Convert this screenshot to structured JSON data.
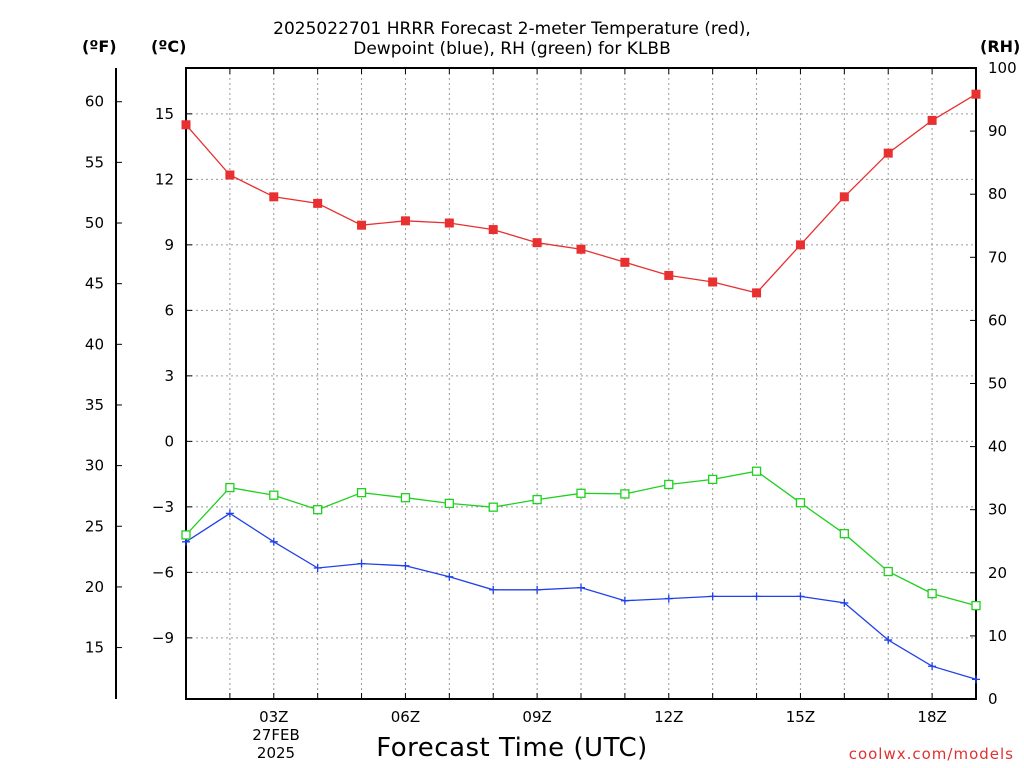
{
  "title_line1": "2025022701 HRRR Forecast 2-meter Temperature (red),",
  "title_line2": "Dewpoint (blue), RH (green) for KLBB",
  "unit_f": "(ºF)",
  "unit_c": "(ºC)",
  "unit_rh": "(RH)",
  "xlabel": "Forecast Time (UTC)",
  "credit": "coolwx.com/models",
  "date_line1": "27FEB",
  "date_line2": "2025",
  "colors": {
    "temperature": "#e83030",
    "dewpoint": "#2040e8",
    "rh": "#20d020",
    "grid": "#999999"
  },
  "chart_data": {
    "type": "line",
    "title": "2025022701 HRRR Forecast 2-meter Temperature (red), Dewpoint (blue), RH (green) for KLBB",
    "xlabel": "Forecast Time (UTC)",
    "x_unit": "hour UTC",
    "x": [
      1,
      2,
      3,
      4,
      5,
      6,
      7,
      8,
      9,
      10,
      11,
      12,
      13,
      14,
      15,
      16,
      17,
      18,
      19
    ],
    "x_ticks": [
      {
        "value": 3,
        "label": "03Z"
      },
      {
        "value": 6,
        "label": "06Z"
      },
      {
        "value": 9,
        "label": "09Z"
      },
      {
        "value": 12,
        "label": "12Z"
      },
      {
        "value": 15,
        "label": "15Z"
      },
      {
        "value": 18,
        "label": "18Z"
      }
    ],
    "xlim": [
      1,
      19
    ],
    "left_axis_c": {
      "label": "(ºC)",
      "ylim": [
        -11.8,
        17.1
      ],
      "ticks": [
        -9,
        -6,
        -3,
        0,
        3,
        6,
        9,
        12,
        15
      ]
    },
    "left_axis_f": {
      "label": "(ºF)",
      "ticks": [
        15,
        20,
        25,
        30,
        35,
        40,
        45,
        50,
        55,
        60
      ]
    },
    "right_axis_rh": {
      "label": "(RH)",
      "ylim": [
        0,
        100
      ],
      "ticks": [
        0,
        10,
        20,
        30,
        40,
        50,
        60,
        70,
        80,
        90,
        100
      ]
    },
    "grid": true,
    "series": [
      {
        "name": "Temperature",
        "axis": "c",
        "color": "#e83030",
        "marker": "filled-square",
        "values": [
          14.5,
          12.2,
          11.2,
          10.9,
          9.9,
          10.1,
          10.0,
          9.7,
          9.1,
          8.8,
          8.2,
          7.6,
          7.3,
          6.8,
          9.0,
          11.2,
          13.2,
          14.7,
          15.9
        ]
      },
      {
        "name": "Dewpoint",
        "axis": "c",
        "color": "#2040e8",
        "marker": "plus",
        "values": [
          -4.6,
          -3.3,
          -4.6,
          -5.8,
          -5.6,
          -5.7,
          -6.2,
          -6.8,
          -6.8,
          -6.7,
          -7.3,
          -7.2,
          -7.1,
          -7.1,
          -7.1,
          -7.4,
          -9.1,
          -10.3,
          -10.9
        ]
      },
      {
        "name": "RH",
        "axis": "rh",
        "color": "#20d020",
        "marker": "open-square",
        "values": [
          26,
          33.5,
          32.3,
          30.0,
          32.7,
          31.9,
          31.0,
          30.4,
          31.6,
          32.6,
          32.5,
          34.0,
          34.8,
          36.1,
          31.1,
          26.2,
          20.2,
          16.7,
          14.8
        ]
      }
    ]
  }
}
